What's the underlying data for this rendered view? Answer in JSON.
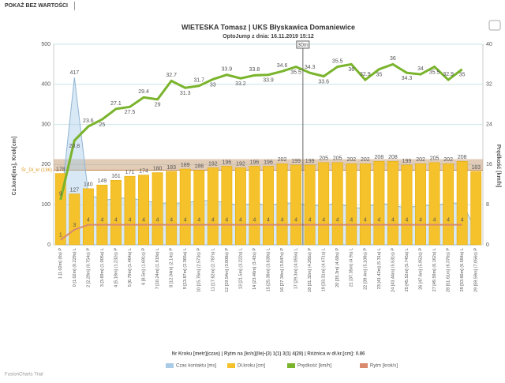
{
  "button": "POKAŻ BEZ WARTOŚCI",
  "chart_data": {
    "type": "combo",
    "title": "WIETESKA Tomasz | UKS Błyskawica Domaniewice",
    "subtitle": "OptoJump z dnia: 16.11.2019 15:12",
    "y_label": "Cz.kont[ms], Krok[cm]",
    "y2_label": "Prędkość [km/h]",
    "x_label": "Nr Kroku [metr](czas) | Rytm na [kr/s](lle)-(3) 1(1) 3(1) 4(28) | Różnica w dł.kr.[cm]: 0.86",
    "ylim": [
      0,
      500
    ],
    "yticks": [
      0,
      100,
      200,
      300,
      400,
      500
    ],
    "y2lim": [
      0,
      40
    ],
    "y2ticks": [
      0,
      8,
      16,
      24,
      32,
      40
    ],
    "marker_label": "30m",
    "trend": {
      "label": "Śr_Dł_kr (186)",
      "value": 186
    },
    "credit": "FusionCharts Trial",
    "categories": [
      "1 [1.02m] (0s) P",
      "0 [1.02m] (0.229s) L",
      "2 [2.29m] (0.754s) P",
      "3 [3.69m] (1.005s) L",
      "4 [5.18m] (1.232s) P",
      "5 [6.79m] (1.464s) L",
      "6 [8.5m] (1.691s) P",
      "7 [10.24m] (1.918s) L",
      "8 [12.04m] (2.14s) P",
      "9 [13.87m] (2.365s) L",
      "10 [15.76m] (2.573s) P",
      "11 [17.62m] (2.787s) L",
      "12 [19.54m] (3.008s) P",
      "13 [21.5m] (3.222s) L",
      "14 [23.46m] (3.43s) P",
      "15 [25.38m] (3.638s) L",
      "16 [27.34m] (3.847s) P",
      "17 [29.3m] (4.055s) L",
      "18 [31.32m] (4.265s) P",
      "19 [33.31m] (4.471s) L",
      "20 [35.3m] (4.68s) P",
      "21 [37.35m] (4.9s) L",
      "22 [39.4m] (5.108s) P",
      "23 [41.42m] (5.31s) L",
      "24 [43.44m] (5.531s) P",
      "25 [45.52m] (5.745s) L",
      "26 [47.6m] (5.952s) P",
      "27 [49.59m] (6.162s) L",
      "28 [51.61m] (6.376s) P",
      "29 [53.66m] (6.584s) L",
      "29 [59.59m] (7.056s) P"
    ],
    "marker_index": 17,
    "series": [
      {
        "name": "Czas kontaktu [ms]",
        "kind": "area",
        "color": "#a9cbe6",
        "values": [
          95,
          417,
          128,
          110,
          116,
          117,
          110,
          104,
          104,
          104,
          110,
          110,
          104,
          98,
          104,
          98,
          104,
          104,
          98,
          98,
          104,
          92,
          92,
          105,
          98,
          92,
          98,
          98,
          104,
          104,
          37
        ]
      },
      {
        "name": "Dł.kroku [cm]",
        "kind": "bar",
        "color": "#f5c22c",
        "values": [
          178,
          127,
          140,
          149,
          161,
          171,
          174,
          180,
          183,
          189,
          186,
          192,
          196,
          192,
          196,
          196,
          202,
          199,
          199,
          205,
          205,
          202,
          202,
          208,
          208,
          199,
          202,
          205,
          202,
          208,
          183
        ]
      },
      {
        "name": "Prędkość [km/h]",
        "kind": "line",
        "axis": "y2",
        "color": "#7ab42c",
        "values": [
          9,
          20.8,
          23.6,
          25,
          27.1,
          27.5,
          29.4,
          29,
          32.7,
          31.3,
          31.7,
          33,
          33.9,
          33.2,
          33.8,
          33.9,
          34.6,
          35.5,
          34.3,
          33.6,
          35.5,
          36,
          32.9,
          35,
          36,
          34.3,
          34,
          35.5,
          32.9,
          35,
          null
        ]
      },
      {
        "name": "Rytm [krok/s]",
        "kind": "line",
        "axis": "y2",
        "color": "#d98a6c",
        "values": [
          1,
          3,
          4,
          4,
          4,
          4,
          4,
          4,
          4,
          4,
          4,
          4,
          4,
          4,
          4,
          4,
          4,
          4,
          4,
          4,
          4,
          4,
          4,
          4,
          4,
          4,
          4,
          4,
          4,
          4,
          null
        ]
      }
    ]
  }
}
